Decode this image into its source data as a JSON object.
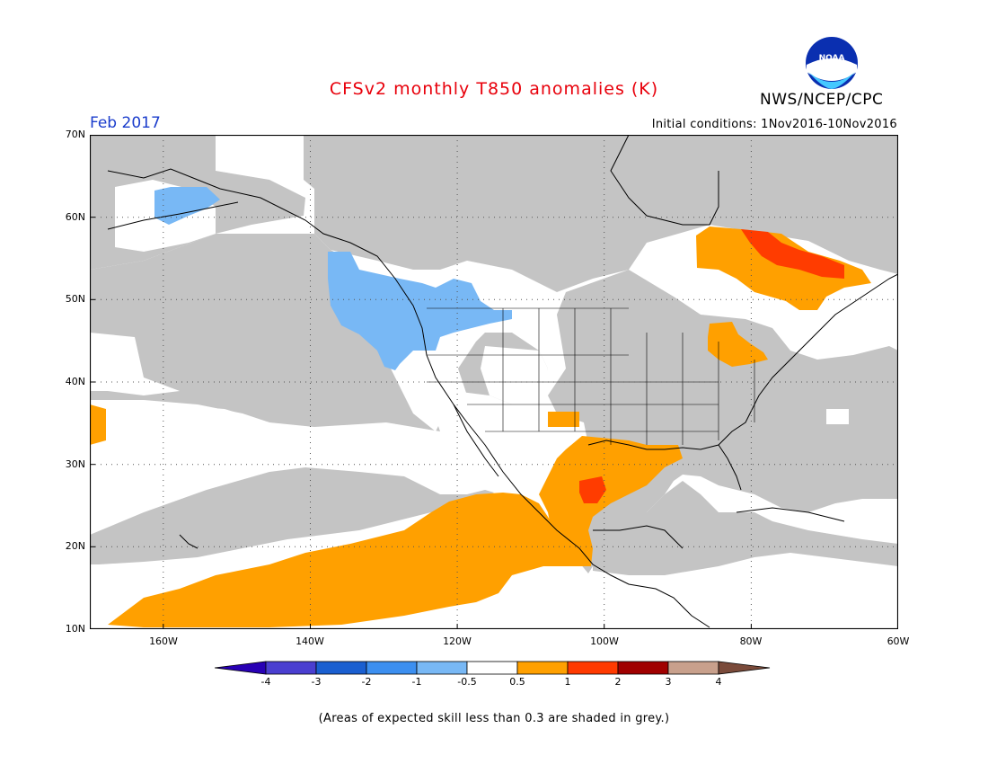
{
  "title": "CFSv2 monthly T850 anomalies (K)",
  "agency": "NWS/NCEP/CPC",
  "logo_text": "NOAA",
  "period": "Feb 2017",
  "initial_conditions": "Initial conditions: 1Nov2016-10Nov2016",
  "footnote": "(Areas of expected skill less than 0.3 are shaded in grey.)",
  "map": {
    "lat_labels": [
      "70N",
      "60N",
      "50N",
      "40N",
      "30N",
      "20N",
      "10N"
    ],
    "lon_labels": [
      "160W",
      "140W",
      "120W",
      "100W",
      "80W",
      "60W"
    ],
    "lat_range": [
      10,
      70
    ],
    "lon_range": [
      -170,
      -60
    ]
  },
  "colorbar": {
    "labels": [
      "-4",
      "-3",
      "-2",
      "-1",
      "-0.5",
      "0.5",
      "1",
      "2",
      "3",
      "4"
    ],
    "colors": [
      "#2800b4",
      "#4a3fd0",
      "#1a5fd0",
      "#3c8ff0",
      "#78b8f5",
      "#ffffff",
      "#ffa000",
      "#ff3a00",
      "#a00000",
      "#c8a08c",
      "#7a4a3a"
    ]
  },
  "colors": {
    "skill_grey": "#c4c4c4",
    "pos_half": "#ffa000",
    "pos_one": "#ff3c00",
    "neg_half": "#78b8f5",
    "title_red": "#e8000b",
    "period_blue": "#1a3ccc"
  }
}
